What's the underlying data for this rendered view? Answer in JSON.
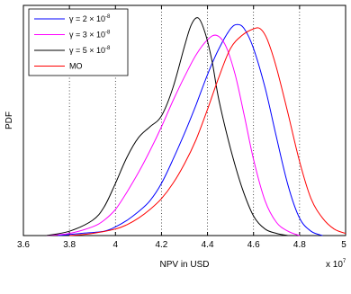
{
  "chart_data": {
    "type": "line",
    "title": "",
    "xlabel": "NPV in USD",
    "ylabel": "PDF",
    "x_multiplier_label": "x 10",
    "x_multiplier_exponent": "7",
    "xlim": [
      3.6,
      5.0
    ],
    "ylim": [
      0,
      1
    ],
    "x_ticks": [
      3.6,
      3.8,
      4,
      4.2,
      4.4,
      4.6,
      4.8,
      5
    ],
    "x_tick_labels": [
      "3.6",
      "3.8",
      "4",
      "4.2",
      "4.4",
      "4.6",
      "4.8",
      "5"
    ],
    "grid": "vertical dotted",
    "legend_position": "top-left",
    "series": [
      {
        "name_prefix": "γ = 2 × 10",
        "name_exponent": "-8",
        "color": "#0000ff",
        "x": [
          3.75,
          3.85,
          3.95,
          4.0,
          4.05,
          4.1,
          4.15,
          4.2,
          4.25,
          4.3,
          4.35,
          4.4,
          4.45,
          4.5,
          4.53,
          4.56,
          4.6,
          4.65,
          4.7,
          4.75,
          4.8,
          4.85,
          4.9
        ],
        "y": [
          0.0,
          0.01,
          0.02,
          0.04,
          0.07,
          0.11,
          0.16,
          0.24,
          0.35,
          0.47,
          0.6,
          0.74,
          0.86,
          0.95,
          0.97,
          0.95,
          0.86,
          0.68,
          0.45,
          0.23,
          0.08,
          0.02,
          0.0
        ]
      },
      {
        "name_prefix": "γ = 3 × 10",
        "name_exponent": "-8",
        "color": "#ff00ff",
        "x": [
          3.7,
          3.8,
          3.9,
          3.95,
          4.0,
          4.05,
          4.1,
          4.15,
          4.2,
          4.25,
          4.3,
          4.35,
          4.4,
          4.44,
          4.48,
          4.52,
          4.56,
          4.6,
          4.65,
          4.7,
          4.75,
          4.8
        ],
        "y": [
          0.0,
          0.01,
          0.04,
          0.07,
          0.12,
          0.2,
          0.29,
          0.39,
          0.5,
          0.62,
          0.73,
          0.83,
          0.9,
          0.92,
          0.87,
          0.74,
          0.55,
          0.35,
          0.16,
          0.06,
          0.02,
          0.0
        ]
      },
      {
        "name_prefix": "γ = 5 × 10",
        "name_exponent": "-8",
        "color": "#000000",
        "x": [
          3.7,
          3.8,
          3.9,
          3.95,
          4.0,
          4.05,
          4.1,
          4.15,
          4.2,
          4.25,
          4.3,
          4.33,
          4.36,
          4.39,
          4.42,
          4.45,
          4.5,
          4.55,
          4.6,
          4.65,
          4.7,
          4.75
        ],
        "y": [
          0.0,
          0.02,
          0.07,
          0.13,
          0.24,
          0.36,
          0.45,
          0.5,
          0.55,
          0.68,
          0.87,
          0.97,
          1.0,
          0.93,
          0.8,
          0.62,
          0.4,
          0.22,
          0.09,
          0.03,
          0.01,
          0.0
        ]
      },
      {
        "name_prefix": "MO",
        "name_exponent": "",
        "color": "#ff0000",
        "x": [
          3.8,
          3.9,
          4.0,
          4.05,
          4.1,
          4.15,
          4.2,
          4.25,
          4.3,
          4.35,
          4.4,
          4.45,
          4.5,
          4.55,
          4.6,
          4.63,
          4.66,
          4.7,
          4.75,
          4.8,
          4.85,
          4.9,
          4.95,
          5.0
        ],
        "y": [
          0.0,
          0.01,
          0.03,
          0.05,
          0.08,
          0.12,
          0.17,
          0.24,
          0.33,
          0.44,
          0.58,
          0.73,
          0.86,
          0.92,
          0.95,
          0.95,
          0.9,
          0.77,
          0.56,
          0.34,
          0.17,
          0.08,
          0.03,
          0.01
        ]
      }
    ]
  }
}
